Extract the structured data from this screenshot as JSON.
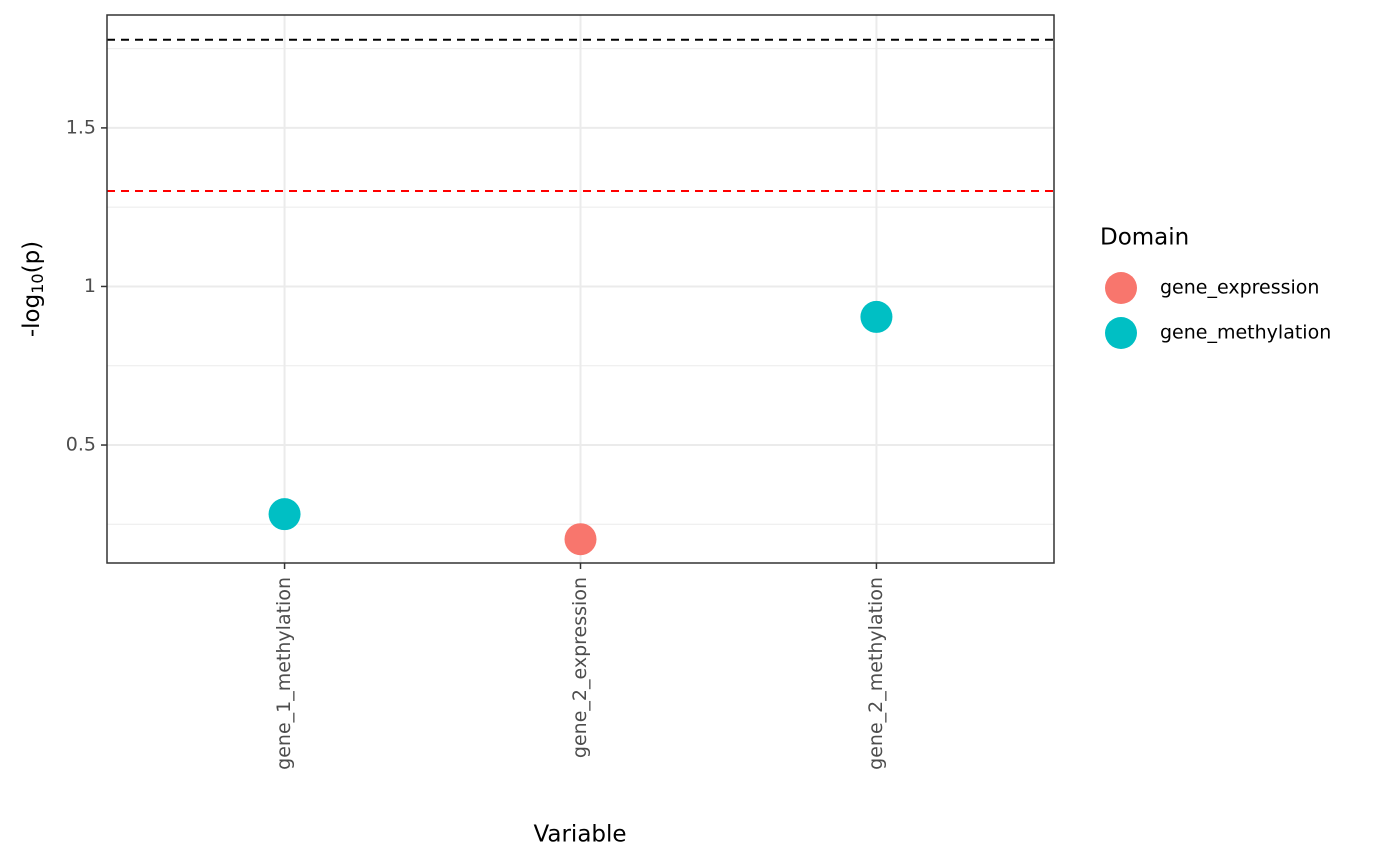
{
  "chart_data": {
    "type": "scatter",
    "xlabel": "Variable",
    "ylabel": [
      "-log",
      "10",
      "(p)"
    ],
    "categories": [
      "gene_1_methylation",
      "gene_2_expression",
      "gene_2_methylation"
    ],
    "series": [
      {
        "name": "gene_expression",
        "color": "#F8766D",
        "values": [
          null,
          0.203,
          null
        ]
      },
      {
        "name": "gene_methylation",
        "color": "#00BFC4",
        "values": [
          0.282,
          null,
          0.904
        ]
      }
    ],
    "legend_title": "Domain",
    "legend_position": "right",
    "hlines": [
      {
        "value": 1.778,
        "color": "#000000"
      },
      {
        "value": 1.301,
        "color": "#FF0000"
      }
    ],
    "ylim": [
      0.128,
      1.856
    ],
    "yticks": [
      0.5,
      1.0,
      1.5
    ],
    "minor_yticks": [
      0.25,
      0.75,
      1.25,
      1.75
    ],
    "grid": true
  }
}
